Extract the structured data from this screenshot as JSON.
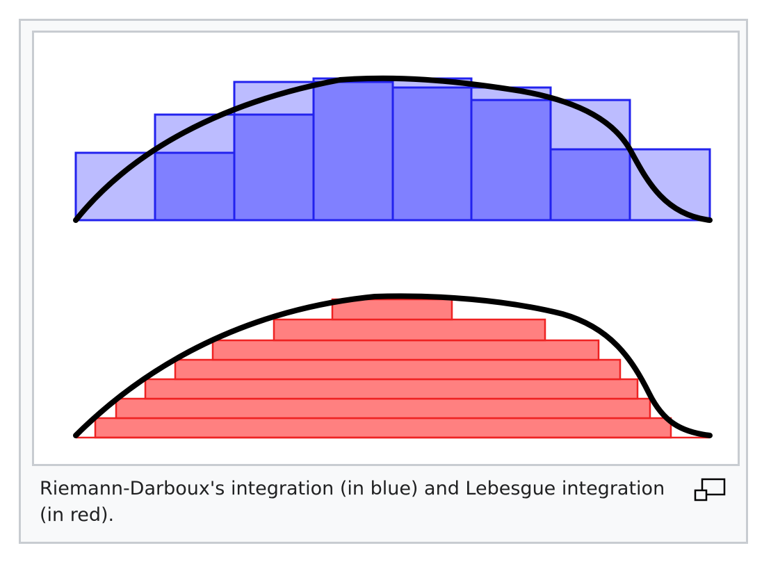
{
  "figure": {
    "caption": "Riemann-Darboux's integration (in blue) and Lebesgue integration (in red).",
    "magnify_icon": "magnify-clip-icon"
  },
  "colors": {
    "frame_border": "#c8ccd1",
    "thumb_background": "#f8f9fa",
    "riemann_upper_fill": "#bcbcff",
    "riemann_lower_fill": "#8080ff",
    "riemann_stroke": "#2222ee",
    "lebesgue_fill": "#ff8080",
    "lebesgue_stroke": "#ee2222",
    "curve": "#000000"
  }
}
